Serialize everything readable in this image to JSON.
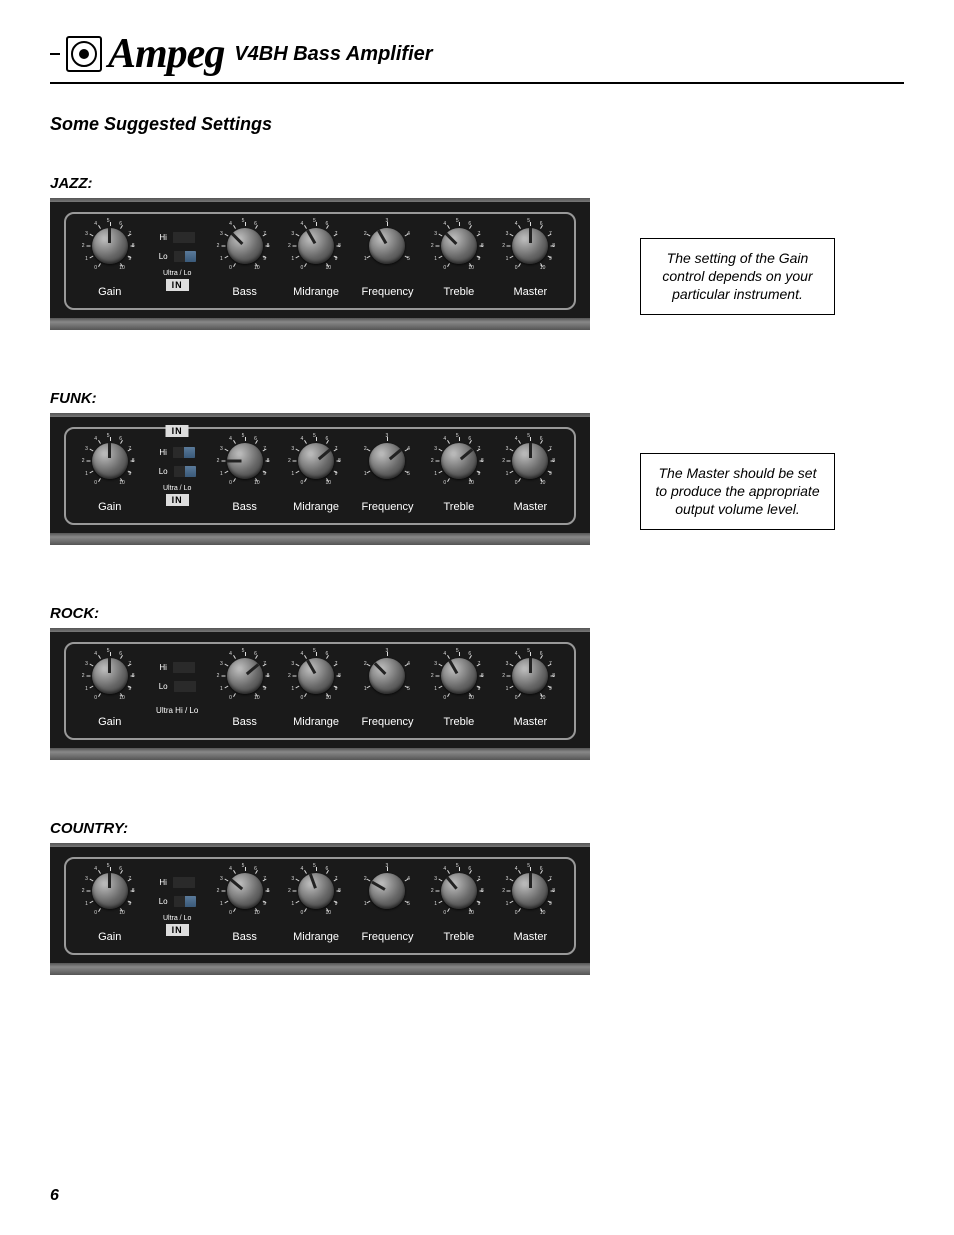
{
  "header": {
    "brand": "Ampeg",
    "product": "V4BH Bass Amplifier"
  },
  "section_title": "Some Suggested Settings",
  "page_number": "6",
  "knob_labels": {
    "gain": "Gain",
    "bass": "Bass",
    "midrange": "Midrange",
    "frequency": "Frequency",
    "treble": "Treble",
    "master": "Master"
  },
  "switch_labels": {
    "hi": "Hi",
    "lo": "Lo",
    "ultra": "Ultra Hi / Lo",
    "ultra_split": "Ultra    / Lo",
    "in": "IN"
  },
  "notes": {
    "gain": "The setting of the Gain control depends on your particular instrument.",
    "master": "The Master should be set to produce the appropriate output volume level."
  },
  "presets": [
    {
      "name": "JAZZ:",
      "knobs": {
        "gain": {
          "angle": 0,
          "scale": "0-10"
        },
        "bass": {
          "angle": -45,
          "scale": "0-10"
        },
        "midrange": {
          "angle": -30,
          "scale": "0-10"
        },
        "frequency": {
          "angle": -30,
          "scale": "1-5"
        },
        "treble": {
          "angle": -45,
          "scale": "0-10"
        },
        "master": {
          "angle": 0,
          "scale": "0-10"
        }
      },
      "switches": {
        "hi": "off",
        "lo": "on",
        "ultra_in": "lo",
        "top_in": false
      },
      "note_key": "gain"
    },
    {
      "name": "FUNK:",
      "knobs": {
        "gain": {
          "angle": 0,
          "scale": "0-10"
        },
        "bass": {
          "angle": -90,
          "scale": "0-10"
        },
        "midrange": {
          "angle": 50,
          "scale": "0-10"
        },
        "frequency": {
          "angle": 50,
          "scale": "1-5"
        },
        "treble": {
          "angle": 50,
          "scale": "0-10"
        },
        "master": {
          "angle": 0,
          "scale": "0-10"
        }
      },
      "switches": {
        "hi": "on",
        "lo": "on",
        "ultra_in": "lo",
        "top_in": true
      },
      "note_key": "master"
    },
    {
      "name": "ROCK:",
      "knobs": {
        "gain": {
          "angle": 0,
          "scale": "0-10"
        },
        "bass": {
          "angle": 50,
          "scale": "0-10"
        },
        "midrange": {
          "angle": -30,
          "scale": "0-10"
        },
        "frequency": {
          "angle": -45,
          "scale": "1-5"
        },
        "treble": {
          "angle": -30,
          "scale": "0-10"
        },
        "master": {
          "angle": 0,
          "scale": "0-10"
        }
      },
      "switches": {
        "hi": "off",
        "lo": "off",
        "ultra_in": "none",
        "top_in": false
      },
      "note_key": null
    },
    {
      "name": "COUNTRY:",
      "knobs": {
        "gain": {
          "angle": 0,
          "scale": "0-10"
        },
        "bass": {
          "angle": -50,
          "scale": "0-10"
        },
        "midrange": {
          "angle": -20,
          "scale": "0-10"
        },
        "frequency": {
          "angle": -60,
          "scale": "1-5"
        },
        "treble": {
          "angle": -40,
          "scale": "0-10"
        },
        "master": {
          "angle": 0,
          "scale": "0-10"
        }
      },
      "switches": {
        "hi": "off",
        "lo": "on",
        "ultra_in": "lo",
        "top_in": false
      },
      "note_key": null
    }
  ],
  "colors": {
    "panel_bg": "#1a1a1a",
    "knob_light": "#b8b8b8",
    "knob_dark": "#333",
    "text_white": "#ffffff",
    "rocker_on": "#5a7a9a"
  }
}
